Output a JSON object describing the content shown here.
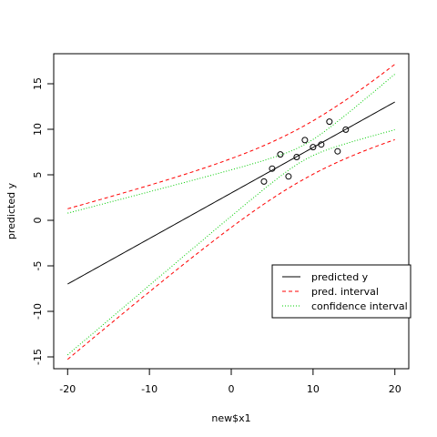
{
  "chart_data": {
    "type": "line",
    "title": "",
    "xlabel": "new$x1",
    "ylabel": "predicted y",
    "xlim": [
      -21.7,
      21.7
    ],
    "ylim": [
      -16.3,
      18.3
    ],
    "x_ticks": [
      -20,
      -10,
      0,
      10,
      20
    ],
    "y_ticks": [
      -15,
      -10,
      -5,
      0,
      5,
      10,
      15
    ],
    "grid": false,
    "legend_position": "right",
    "observed_points": {
      "x": [
        4,
        5,
        6,
        7,
        8,
        9,
        10,
        11,
        12,
        13,
        14
      ],
      "y": [
        4.26,
        5.68,
        7.24,
        4.82,
        6.95,
        8.81,
        8.04,
        8.33,
        10.84,
        7.58,
        9.96
      ]
    },
    "fit_model": {
      "n": 11,
      "intercept": 3.0,
      "slope": 0.5,
      "x_mean": 9,
      "ssx": 110,
      "sigma": 1.237,
      "t_crit": 2.262,
      "x_from": -20,
      "x_to": 20
    },
    "series": [
      {
        "name": "predicted y",
        "color": "#000000",
        "dash": "none"
      },
      {
        "name": "pred. interval",
        "color": "#ff0000",
        "dash": "4,3"
      },
      {
        "name": "confidence interval",
        "color": "#00cc00",
        "dash": "1,2"
      }
    ]
  }
}
